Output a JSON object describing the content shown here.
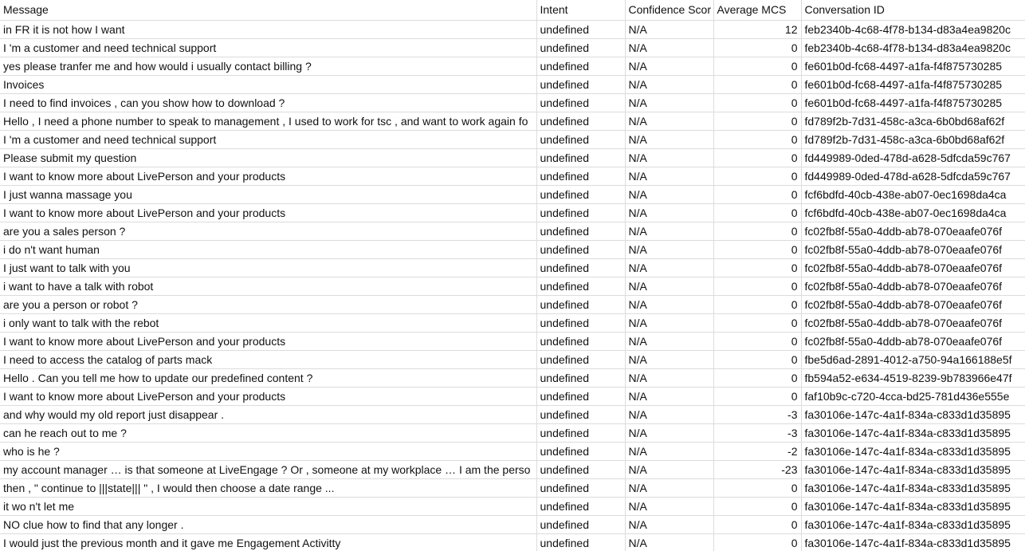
{
  "columns": {
    "message": "Message",
    "intent": "Intent",
    "confidence": "Confidence Scor",
    "mcs": "Average MCS",
    "conversation": "Conversation ID"
  },
  "rows": [
    {
      "message": "in FR it is not how I want",
      "intent": "undefined",
      "confidence": "N/A",
      "mcs": "12",
      "conversation": "feb2340b-4c68-4f78-b134-d83a4ea9820c"
    },
    {
      "message": "I 'm a customer and need technical support",
      "intent": "undefined",
      "confidence": "N/A",
      "mcs": "0",
      "conversation": "feb2340b-4c68-4f78-b134-d83a4ea9820c"
    },
    {
      "message": "yes please tranfer me and how would i usually contact billing ?",
      "intent": "undefined",
      "confidence": "N/A",
      "mcs": "0",
      "conversation": "fe601b0d-fc68-4497-a1fa-f4f875730285"
    },
    {
      "message": "Invoices",
      "intent": "undefined",
      "confidence": "N/A",
      "mcs": "0",
      "conversation": "fe601b0d-fc68-4497-a1fa-f4f875730285"
    },
    {
      "message": "I need to find invoices , can you show how to download ?",
      "intent": "undefined",
      "confidence": "N/A",
      "mcs": "0",
      "conversation": "fe601b0d-fc68-4497-a1fa-f4f875730285"
    },
    {
      "message": "Hello , I need a phone number to speak to management , I used to work for tsc , and want to work again fo",
      "intent": "undefined",
      "confidence": "N/A",
      "mcs": "0",
      "conversation": "fd789f2b-7d31-458c-a3ca-6b0bd68af62f"
    },
    {
      "message": "I 'm a customer and need technical support",
      "intent": "undefined",
      "confidence": "N/A",
      "mcs": "0",
      "conversation": "fd789f2b-7d31-458c-a3ca-6b0bd68af62f"
    },
    {
      "message": "Please submit my question",
      "intent": "undefined",
      "confidence": "N/A",
      "mcs": "0",
      "conversation": "fd449989-0ded-478d-a628-5dfcda59c767"
    },
    {
      "message": "I want to know more about LivePerson and your products",
      "intent": "undefined",
      "confidence": "N/A",
      "mcs": "0",
      "conversation": "fd449989-0ded-478d-a628-5dfcda59c767"
    },
    {
      "message": "I just wanna massage you",
      "intent": "undefined",
      "confidence": "N/A",
      "mcs": "0",
      "conversation": "fcf6bdfd-40cb-438e-ab07-0ec1698da4ca"
    },
    {
      "message": "I want to know more about LivePerson and your products",
      "intent": "undefined",
      "confidence": "N/A",
      "mcs": "0",
      "conversation": "fcf6bdfd-40cb-438e-ab07-0ec1698da4ca"
    },
    {
      "message": "are you a sales person ?",
      "intent": "undefined",
      "confidence": "N/A",
      "mcs": "0",
      "conversation": "fc02fb8f-55a0-4ddb-ab78-070eaafe076f"
    },
    {
      "message": "i do n't want human",
      "intent": "undefined",
      "confidence": "N/A",
      "mcs": "0",
      "conversation": "fc02fb8f-55a0-4ddb-ab78-070eaafe076f"
    },
    {
      "message": "I just want to talk with you",
      "intent": "undefined",
      "confidence": "N/A",
      "mcs": "0",
      "conversation": "fc02fb8f-55a0-4ddb-ab78-070eaafe076f"
    },
    {
      "message": "i want to have a talk with robot",
      "intent": "undefined",
      "confidence": "N/A",
      "mcs": "0",
      "conversation": "fc02fb8f-55a0-4ddb-ab78-070eaafe076f"
    },
    {
      "message": "are you a person or robot ?",
      "intent": "undefined",
      "confidence": "N/A",
      "mcs": "0",
      "conversation": "fc02fb8f-55a0-4ddb-ab78-070eaafe076f"
    },
    {
      "message": "i only want to talk with the rebot",
      "intent": "undefined",
      "confidence": "N/A",
      "mcs": "0",
      "conversation": "fc02fb8f-55a0-4ddb-ab78-070eaafe076f"
    },
    {
      "message": "I want to know more about LivePerson and your products",
      "intent": "undefined",
      "confidence": "N/A",
      "mcs": "0",
      "conversation": "fc02fb8f-55a0-4ddb-ab78-070eaafe076f"
    },
    {
      "message": "I need to access the catalog of parts mack",
      "intent": "undefined",
      "confidence": "N/A",
      "mcs": "0",
      "conversation": "fbe5d6ad-2891-4012-a750-94a166188e5f"
    },
    {
      "message": "Hello . Can you tell me how to update our predefined content ?",
      "intent": "undefined",
      "confidence": "N/A",
      "mcs": "0",
      "conversation": "fb594a52-e634-4519-8239-9b783966e47f"
    },
    {
      "message": "I want to know more about LivePerson and your products",
      "intent": "undefined",
      "confidence": "N/A",
      "mcs": "0",
      "conversation": "faf10b9c-c720-4cca-bd25-781d436e555e"
    },
    {
      "message": "and why would my old report just disappear .",
      "intent": "undefined",
      "confidence": "N/A",
      "mcs": "-3",
      "conversation": "fa30106e-147c-4a1f-834a-c833d1d35895"
    },
    {
      "message": "can he reach out to me ?",
      "intent": "undefined",
      "confidence": "N/A",
      "mcs": "-3",
      "conversation": "fa30106e-147c-4a1f-834a-c833d1d35895"
    },
    {
      "message": "who is he ?",
      "intent": "undefined",
      "confidence": "N/A",
      "mcs": "-2",
      "conversation": "fa30106e-147c-4a1f-834a-c833d1d35895"
    },
    {
      "message": "my account manager … is that someone at LiveEngage ? Or , someone at my workplace … I am the perso",
      "intent": "undefined",
      "confidence": "N/A",
      "mcs": "-23",
      "conversation": "fa30106e-147c-4a1f-834a-c833d1d35895"
    },
    {
      "message": "then , \" continue to |||state||| \" , I would then choose a date range ...",
      "intent": "undefined",
      "confidence": "N/A",
      "mcs": "0",
      "conversation": "fa30106e-147c-4a1f-834a-c833d1d35895"
    },
    {
      "message": "it wo n't let me",
      "intent": "undefined",
      "confidence": "N/A",
      "mcs": "0",
      "conversation": "fa30106e-147c-4a1f-834a-c833d1d35895"
    },
    {
      "message": "NO clue how to find that any longer .",
      "intent": "undefined",
      "confidence": "N/A",
      "mcs": "0",
      "conversation": "fa30106e-147c-4a1f-834a-c833d1d35895"
    },
    {
      "message": "I would just the previous month and it gave me Engagement Activitty",
      "intent": "undefined",
      "confidence": "N/A",
      "mcs": "0",
      "conversation": "fa30106e-147c-4a1f-834a-c833d1d35895"
    }
  ]
}
